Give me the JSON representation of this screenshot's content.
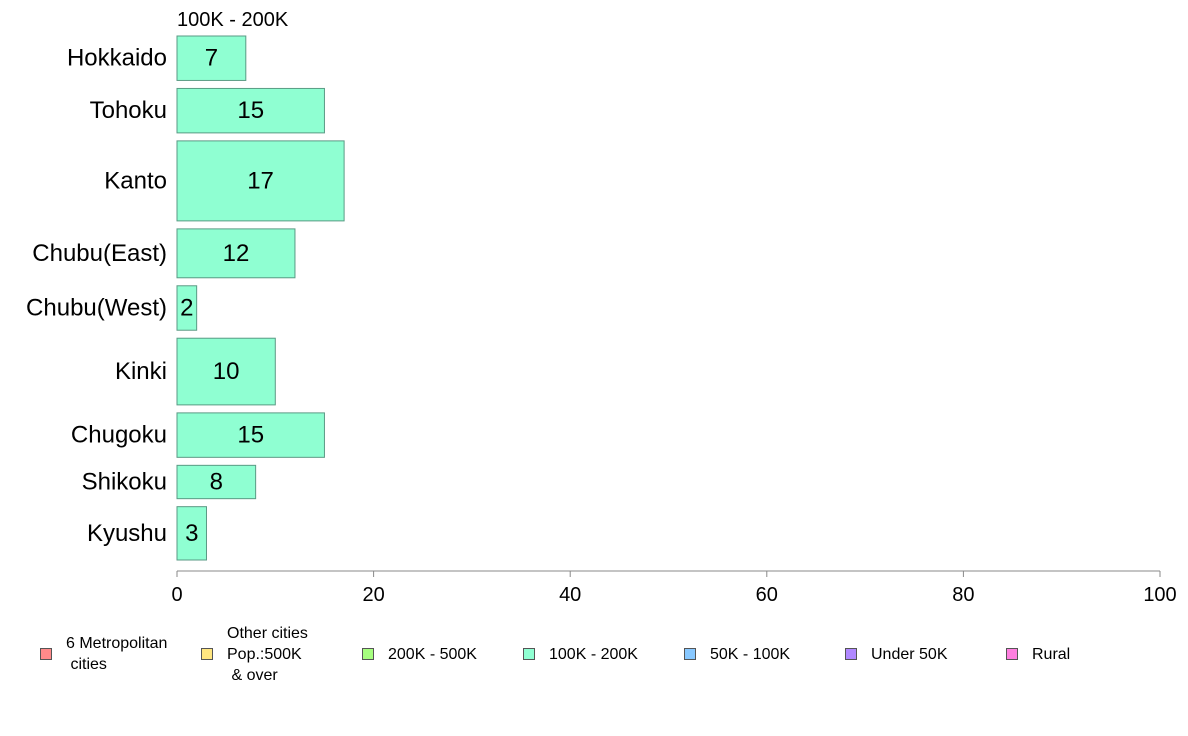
{
  "chart_data": {
    "type": "bar",
    "orientation": "horizontal",
    "title": "100K - 200K",
    "categories": [
      "Hokkaido",
      "Tohoku",
      "Kanto",
      "Chubu(East)",
      "Chubu(West)",
      "Kinki",
      "Chugoku",
      "Shikoku",
      "Kyushu"
    ],
    "series": [
      {
        "name": "100K - 200K",
        "values": [
          7,
          15,
          17,
          12,
          2,
          10,
          15,
          8,
          3
        ],
        "color": "#8FFFD2"
      }
    ],
    "category_weights": [
      1,
      1,
      1.8,
      1.1,
      1,
      1.5,
      1,
      0.75,
      1.2
    ],
    "xlim": [
      0,
      100
    ],
    "xticks": [
      0,
      20,
      40,
      60,
      80,
      100
    ],
    "xlabel": "",
    "ylabel": "",
    "grid": false,
    "legend_position": "bottom",
    "legend": [
      {
        "label": "6 Metropolitan\n cities",
        "color": "#FF8A8A"
      },
      {
        "label": "Other cities\nPop.:500K\n & over",
        "color": "#FFE680"
      },
      {
        "label": "200K - 500K",
        "color": "#A6FF7F"
      },
      {
        "label": "100K - 200K",
        "color": "#8FFFD2"
      },
      {
        "label": "50K - 100K",
        "color": "#88C8FF"
      },
      {
        "label": "Under 50K",
        "color": "#B088FF"
      },
      {
        "label": "Rural",
        "color": "#FF7FE0"
      }
    ]
  }
}
